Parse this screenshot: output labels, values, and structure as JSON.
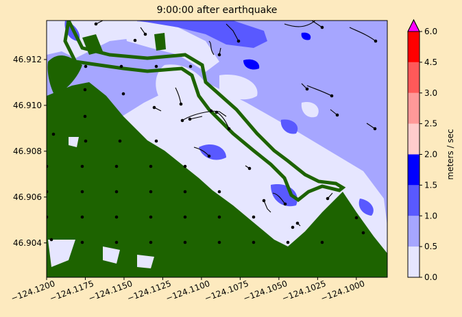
{
  "chart_data": {
    "type": "heatmap",
    "title": "9:00:00 after earthquake",
    "xlabel": "",
    "ylabel": "",
    "xlim": [
      -124.12,
      -124.098
    ],
    "ylim": [
      46.9025,
      46.9137
    ],
    "x_ticks": [
      -124.12,
      -124.1175,
      -124.115,
      -124.1125,
      -124.11,
      -124.1075,
      -124.105,
      -124.1025,
      -124.1
    ],
    "x_tick_labels": [
      "−124.1200",
      "−124.1175",
      "−124.1150",
      "−124.1125",
      "−124.1100",
      "−124.1075",
      "−124.1050",
      "−124.1025",
      "−124.1000"
    ],
    "y_ticks": [
      46.904,
      46.906,
      46.908,
      46.91,
      46.912
    ],
    "y_tick_labels": [
      "46.904",
      "46.906",
      "46.908",
      "46.910",
      "46.912"
    ],
    "colorbar": {
      "label": "meters / sec",
      "levels": [
        0.0,
        0.5,
        1.0,
        1.5,
        2.0,
        2.5,
        3.0,
        4.5,
        6.0
      ],
      "level_labels": [
        "0.0",
        "0.5",
        "1.0",
        "1.5",
        "2.0",
        "2.5",
        "3.0",
        "4.5",
        "6.0"
      ],
      "colors": [
        "#e6e6ff",
        "#a6a6ff",
        "#5959ff",
        "#0000ff",
        "#ffcccc",
        "#ff9999",
        "#ff5959",
        "#ff0000"
      ],
      "extend_color": "#ff00ff"
    },
    "land_color": "#1d6300",
    "background_color": "#fdeabf"
  }
}
